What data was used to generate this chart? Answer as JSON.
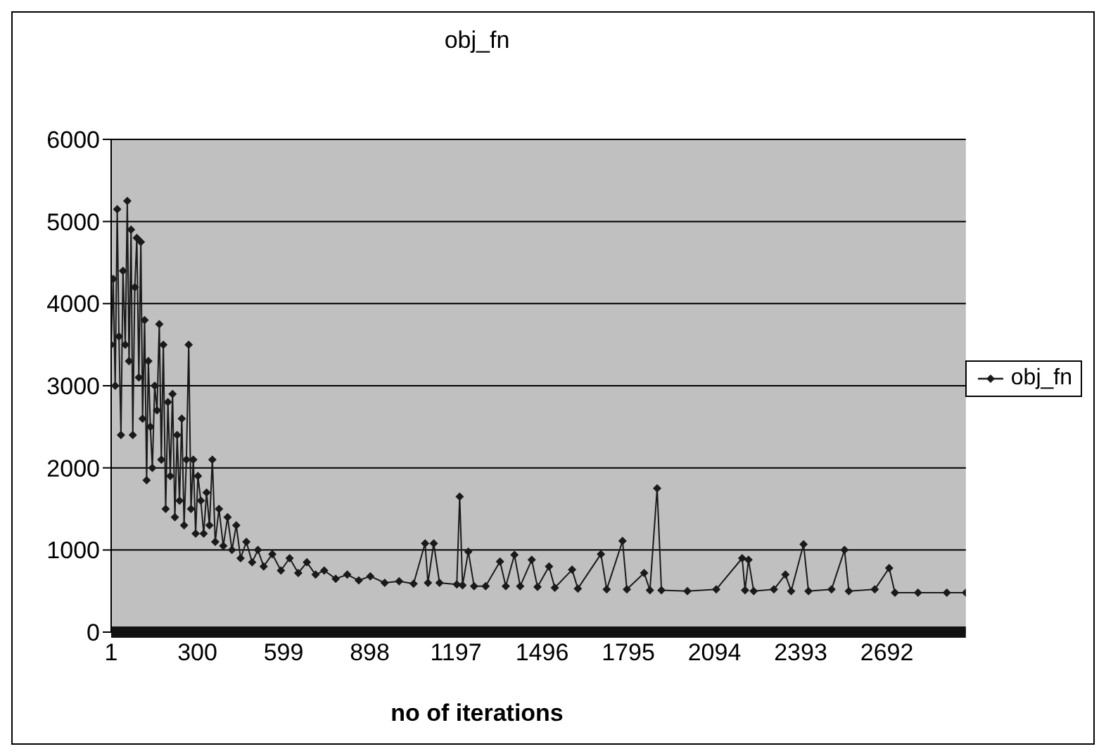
{
  "chart_data": {
    "type": "line",
    "title": "obj_fn",
    "xlabel": "no of iterations",
    "x": [
      1,
      8,
      15,
      22,
      28,
      35,
      42,
      50,
      57,
      63,
      70,
      76,
      83,
      90,
      97,
      104,
      110,
      117,
      124,
      130,
      137,
      144,
      152,
      160,
      168,
      175,
      182,
      190,
      198,
      206,
      214,
      222,
      230,
      238,
      246,
      254,
      262,
      270,
      278,
      286,
      294,
      302,
      312,
      322,
      332,
      342,
      352,
      362,
      375,
      390,
      405,
      420,
      435,
      450,
      470,
      490,
      510,
      530,
      560,
      590,
      620,
      650,
      680,
      710,
      740,
      780,
      820,
      860,
      900,
      950,
      1000,
      1050,
      1090,
      1100,
      1120,
      1140,
      1200,
      1210,
      1220,
      1240,
      1260,
      1300,
      1350,
      1370,
      1400,
      1420,
      1460,
      1480,
      1520,
      1540,
      1600,
      1620,
      1700,
      1720,
      1775,
      1790,
      1850,
      1870,
      1895,
      1910,
      2000,
      2100,
      2190,
      2200,
      2212,
      2230,
      2300,
      2340,
      2360,
      2403,
      2420,
      2500,
      2545,
      2560,
      2650,
      2700,
      2720,
      2800,
      2900,
      2966
    ],
    "series": [
      {
        "name": "obj_fn",
        "color": "#1a1a1a",
        "values": [
          3500,
          4300,
          3000,
          5150,
          3600,
          2400,
          4400,
          3500,
          5250,
          3300,
          4900,
          2400,
          4200,
          4800,
          3100,
          4750,
          2600,
          3800,
          1850,
          3300,
          2500,
          2000,
          3000,
          2700,
          3750,
          2100,
          3500,
          1500,
          2800,
          1900,
          2900,
          1400,
          2400,
          1600,
          2600,
          1300,
          2100,
          3500,
          1500,
          2100,
          1200,
          1900,
          1600,
          1200,
          1700,
          1300,
          2100,
          1100,
          1500,
          1050,
          1400,
          1000,
          1300,
          900,
          1100,
          850,
          1000,
          800,
          950,
          750,
          900,
          720,
          850,
          700,
          750,
          650,
          700,
          630,
          680,
          600,
          620,
          590,
          1080,
          600,
          1080,
          600,
          580,
          1650,
          570,
          980,
          560,
          560,
          860,
          560,
          940,
          560,
          880,
          550,
          800,
          540,
          760,
          530,
          950,
          520,
          1110,
          520,
          720,
          510,
          1750,
          510,
          500,
          520,
          900,
          510,
          880,
          500,
          520,
          700,
          500,
          1070,
          500,
          520,
          1000,
          500,
          520,
          780,
          480,
          480,
          480,
          480
        ]
      }
    ],
    "xlim": [
      1,
      2966
    ],
    "xticks": [
      1,
      300,
      599,
      898,
      1197,
      1496,
      1795,
      2094,
      2393,
      2692
    ],
    "ylim": [
      0,
      6000
    ],
    "yticks": [
      0,
      1000,
      2000,
      3000,
      4000,
      5000,
      6000
    ],
    "grid": "y",
    "legend": "right",
    "marker": "diamond",
    "line_style": "solid"
  }
}
